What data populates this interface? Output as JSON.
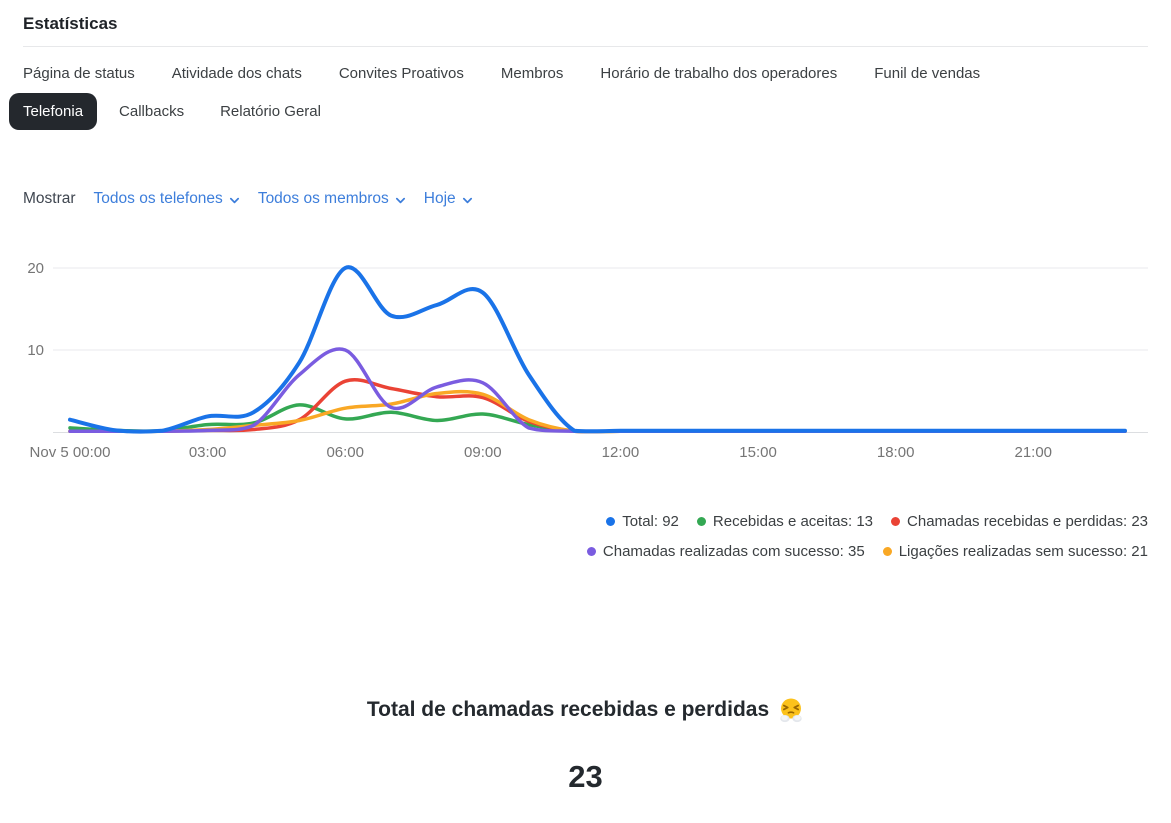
{
  "header": {
    "title": "Estatísticas"
  },
  "tabs": {
    "active": "Telefonia",
    "row1": [
      {
        "key": "pagina-de-status",
        "label": "Página de status"
      },
      {
        "key": "atividade-dos-chats",
        "label": "Atividade dos chats"
      },
      {
        "key": "convites-proativos",
        "label": "Convites Proativos"
      },
      {
        "key": "membros",
        "label": "Membros"
      },
      {
        "key": "horario-de-trabalho-dos-operadores",
        "label": "Horário de trabalho dos operadores"
      },
      {
        "key": "funil-de-vendas",
        "label": "Funil de vendas"
      }
    ],
    "row2": [
      {
        "key": "telefonia",
        "label": "Telefonia"
      },
      {
        "key": "callbacks",
        "label": "Callbacks"
      },
      {
        "key": "relatorio-geral",
        "label": "Relatório Geral"
      }
    ]
  },
  "filters": {
    "label": "Mostrar",
    "link_color": "#3d7edb",
    "dropdowns": [
      {
        "key": "phones",
        "label": "Todos os telefones"
      },
      {
        "key": "members",
        "label": "Todos os membros"
      },
      {
        "key": "period",
        "label": "Hoje"
      }
    ]
  },
  "chart_data": {
    "type": "line",
    "title": "",
    "xlabel": "",
    "ylabel": "",
    "x_unit": "hour",
    "x_range_hours": [
      0,
      23
    ],
    "ylim": [
      0,
      22
    ],
    "grid": true,
    "legend_position": "bottom-right",
    "axis_label_color": "#757575",
    "gridline_color": "#e8eaed",
    "baseline_color": "#dcdee1",
    "x_ticks": [
      {
        "hour": 0,
        "label": "Nov 5 00:00"
      },
      {
        "hour": 3,
        "label": "03:00"
      },
      {
        "hour": 6,
        "label": "06:00"
      },
      {
        "hour": 9,
        "label": "09:00"
      },
      {
        "hour": 12,
        "label": "12:00"
      },
      {
        "hour": 15,
        "label": "15:00"
      },
      {
        "hour": 18,
        "label": "18:00"
      },
      {
        "hour": 21,
        "label": "21:00"
      }
    ],
    "y_ticks": [
      10,
      20
    ],
    "series": [
      {
        "key": "total",
        "name": "Total",
        "total": 92,
        "color": "#1a73e8",
        "values": [
          1.5,
          0.2,
          0.15,
          1.9,
          2.4,
          8.5,
          20,
          14.2,
          15.5,
          17,
          7,
          0.15,
          0.15,
          0.15,
          0.15,
          0.15,
          0.15,
          0.15,
          0.15,
          0.15,
          0.15,
          0.15,
          0.15,
          0.15
        ]
      },
      {
        "key": "recebidas-e-aceitas",
        "name": "Recebidas e aceitas",
        "total": 13,
        "color": "#34a853",
        "values": [
          0.5,
          0.2,
          0.15,
          0.9,
          1.1,
          3.3,
          1.6,
          2.4,
          1.4,
          2.2,
          0.9,
          0.1,
          0.1,
          0.1,
          0.1,
          0.1,
          0.1,
          0.1,
          0.1,
          0.1,
          0.1,
          0.1,
          0.1,
          0.1
        ]
      },
      {
        "key": "chamadas-recebidas-e-perdidas",
        "name": "Chamadas recebidas e perdidas",
        "total": 23,
        "color": "#ea4335",
        "values": [
          0.1,
          0.1,
          0.1,
          0.2,
          0.3,
          1.5,
          6.2,
          5.3,
          4.3,
          4.2,
          1.3,
          0.1,
          0.1,
          0.1,
          0.1,
          0.1,
          0.1,
          0.1,
          0.1,
          0.1,
          0.1,
          0.1,
          0.1,
          0.1
        ]
      },
      {
        "key": "chamadas-realizadas-com-sucesso",
        "name": "Chamadas realizadas com sucesso",
        "total": 35,
        "color": "#7a5ce0",
        "values": [
          0.1,
          0.1,
          0.1,
          0.2,
          0.8,
          7,
          10,
          3,
          5.5,
          6,
          0.5,
          0.1,
          0.1,
          0.1,
          0.1,
          0.1,
          0.1,
          0.1,
          0.1,
          0.1,
          0.1,
          0.1,
          0.1,
          0.1
        ]
      },
      {
        "key": "ligacoes-realizadas-sem-sucesso",
        "name": "Ligações realizadas sem sucesso",
        "total": 21,
        "color": "#f9a825",
        "values": [
          0.1,
          0.1,
          0.1,
          0.3,
          0.8,
          1.4,
          2.9,
          3.4,
          4.7,
          4.6,
          1.5,
          0.1,
          0.1,
          0.1,
          0.1,
          0.1,
          0.1,
          0.1,
          0.1,
          0.1,
          0.1,
          0.1,
          0.1,
          0.1
        ]
      }
    ]
  },
  "summary": {
    "title": "Total de chamadas recebidas e perdidas",
    "emoji": "😤",
    "value": "23"
  }
}
